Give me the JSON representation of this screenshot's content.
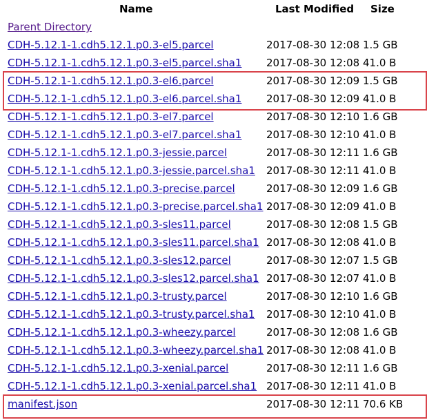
{
  "columns": {
    "name": "Name",
    "last_modified": "Last Modified",
    "size": "Size"
  },
  "parent_directory": "Parent Directory",
  "files": [
    {
      "name": "CDH-5.12.1-1.cdh5.12.1.p0.3-el5.parcel",
      "modified": "2017-08-30 12:08",
      "size": "1.5 GB"
    },
    {
      "name": "CDH-5.12.1-1.cdh5.12.1.p0.3-el5.parcel.sha1",
      "modified": "2017-08-30 12:08",
      "size": "41.0 B"
    },
    {
      "name": "CDH-5.12.1-1.cdh5.12.1.p0.3-el6.parcel",
      "modified": "2017-08-30 12:09",
      "size": "1.5 GB"
    },
    {
      "name": "CDH-5.12.1-1.cdh5.12.1.p0.3-el6.parcel.sha1",
      "modified": "2017-08-30 12:09",
      "size": "41.0 B"
    },
    {
      "name": "CDH-5.12.1-1.cdh5.12.1.p0.3-el7.parcel",
      "modified": "2017-08-30 12:10",
      "size": "1.6 GB"
    },
    {
      "name": "CDH-5.12.1-1.cdh5.12.1.p0.3-el7.parcel.sha1",
      "modified": "2017-08-30 12:10",
      "size": "41.0 B"
    },
    {
      "name": "CDH-5.12.1-1.cdh5.12.1.p0.3-jessie.parcel",
      "modified": "2017-08-30 12:11",
      "size": "1.6 GB"
    },
    {
      "name": "CDH-5.12.1-1.cdh5.12.1.p0.3-jessie.parcel.sha1",
      "modified": "2017-08-30 12:11",
      "size": "41.0 B"
    },
    {
      "name": "CDH-5.12.1-1.cdh5.12.1.p0.3-precise.parcel",
      "modified": "2017-08-30 12:09",
      "size": "1.6 GB"
    },
    {
      "name": "CDH-5.12.1-1.cdh5.12.1.p0.3-precise.parcel.sha1",
      "modified": "2017-08-30 12:09",
      "size": "41.0 B"
    },
    {
      "name": "CDH-5.12.1-1.cdh5.12.1.p0.3-sles11.parcel",
      "modified": "2017-08-30 12:08",
      "size": "1.5 GB"
    },
    {
      "name": "CDH-5.12.1-1.cdh5.12.1.p0.3-sles11.parcel.sha1",
      "modified": "2017-08-30 12:08",
      "size": "41.0 B"
    },
    {
      "name": "CDH-5.12.1-1.cdh5.12.1.p0.3-sles12.parcel",
      "modified": "2017-08-30 12:07",
      "size": "1.5 GB"
    },
    {
      "name": "CDH-5.12.1-1.cdh5.12.1.p0.3-sles12.parcel.sha1",
      "modified": "2017-08-30 12:07",
      "size": "41.0 B"
    },
    {
      "name": "CDH-5.12.1-1.cdh5.12.1.p0.3-trusty.parcel",
      "modified": "2017-08-30 12:10",
      "size": "1.6 GB"
    },
    {
      "name": "CDH-5.12.1-1.cdh5.12.1.p0.3-trusty.parcel.sha1",
      "modified": "2017-08-30 12:10",
      "size": "41.0 B"
    },
    {
      "name": "CDH-5.12.1-1.cdh5.12.1.p0.3-wheezy.parcel",
      "modified": "2017-08-30 12:08",
      "size": "1.6 GB"
    },
    {
      "name": "CDH-5.12.1-1.cdh5.12.1.p0.3-wheezy.parcel.sha1",
      "modified": "2017-08-30 12:08",
      "size": "41.0 B"
    },
    {
      "name": "CDH-5.12.1-1.cdh5.12.1.p0.3-xenial.parcel",
      "modified": "2017-08-30 12:11",
      "size": "1.6 GB"
    },
    {
      "name": "CDH-5.12.1-1.cdh5.12.1.p0.3-xenial.parcel.sha1",
      "modified": "2017-08-30 12:11",
      "size": "41.0 B"
    },
    {
      "name": "manifest.json",
      "modified": "2017-08-30 12:11",
      "size": "70.6 KB"
    }
  ],
  "colors": {
    "link": "#1a0dab",
    "visited_link": "#551a8b",
    "highlight_box": "#d9434a"
  }
}
